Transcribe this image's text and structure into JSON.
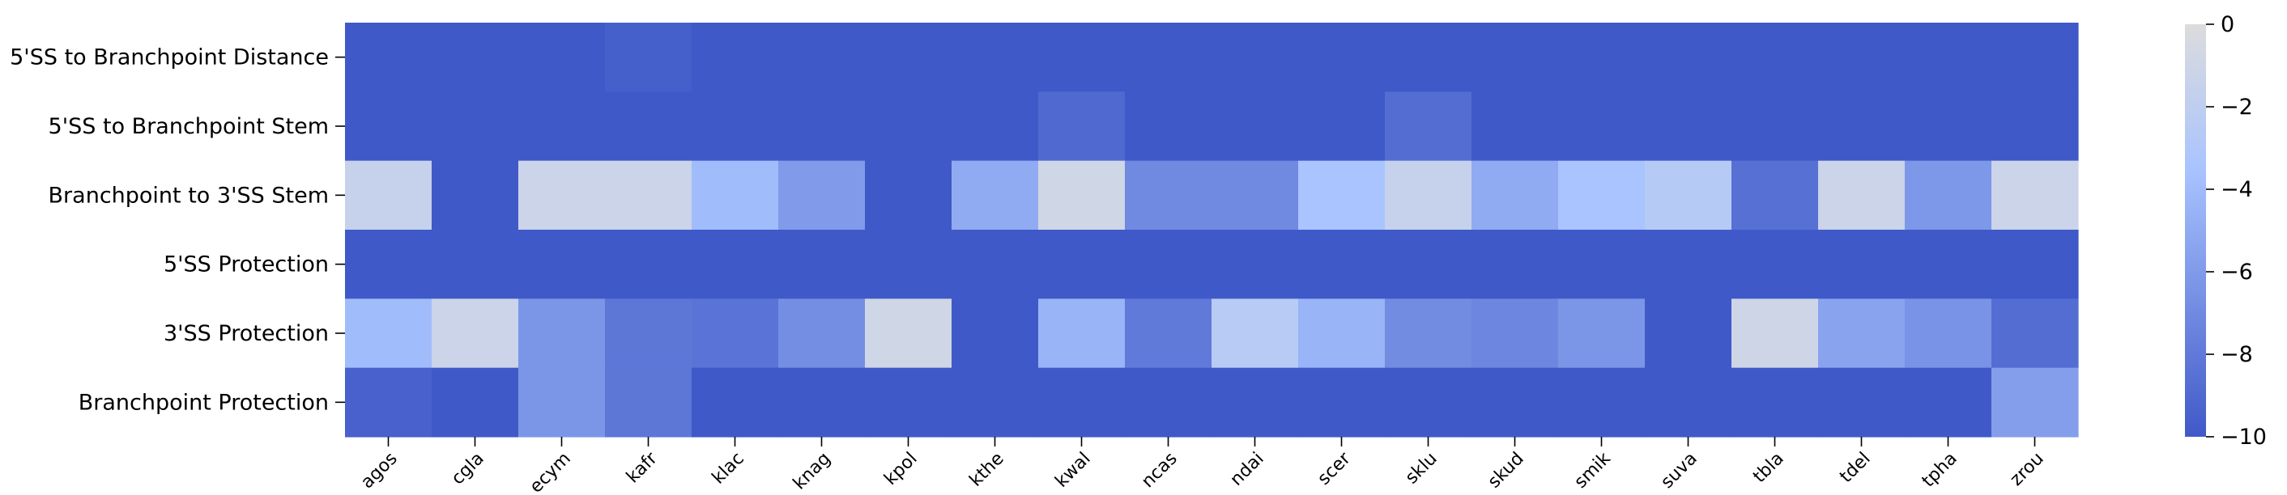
{
  "chart_data": {
    "type": "heatmap",
    "title": "",
    "xlabel": "",
    "ylabel": "",
    "columns": [
      "agos",
      "cgla",
      "ecym",
      "kafr",
      "klac",
      "knag",
      "kpol",
      "kthe",
      "kwal",
      "ncas",
      "ndai",
      "scer",
      "sklu",
      "skud",
      "smik",
      "suva",
      "tbla",
      "tdel",
      "tpha",
      "zrou"
    ],
    "rows": [
      "5'SS to Branchpoint Distance",
      "5'SS to Branchpoint Stem",
      "Branchpoint to 3'SS Stem",
      "5'SS Protection",
      "3'SS Protection",
      "Branchpoint Protection"
    ],
    "values": [
      [
        -10,
        -10,
        -10,
        -9.6,
        -10,
        -10,
        -10,
        -10,
        -10,
        -10,
        -10,
        -10,
        -10,
        -10,
        -10,
        -10,
        -10,
        -10,
        -10,
        -10
      ],
      [
        -10,
        -10,
        -10,
        -10,
        -10,
        -10,
        -10,
        -10,
        -9.0,
        -10,
        -10,
        -10,
        -8.8,
        -10,
        -10,
        -10,
        -10,
        -10,
        -10,
        -10
      ],
      [
        -1.5,
        -10,
        -1.2,
        -1.2,
        -4.0,
        -6.0,
        -10,
        -5.0,
        -0.9,
        -7.0,
        -7.0,
        -3.5,
        -1.5,
        -5.0,
        -3.5,
        -2.6,
        -8.6,
        -1.2,
        -6.2,
        -1.2
      ],
      [
        -10,
        -10,
        -10,
        -10,
        -10,
        -10,
        -10,
        -10,
        -10,
        -10,
        -10,
        -10,
        -10,
        -10,
        -10,
        -10,
        -10,
        -10,
        -10,
        -10
      ],
      [
        -4.0,
        -1.2,
        -6.3,
        -8.2,
        -8.4,
        -6.8,
        -0.9,
        -10,
        -4.5,
        -8.0,
        -2.5,
        -4.5,
        -6.9,
        -7.2,
        -6.3,
        -10,
        -1.0,
        -5.5,
        -6.5,
        -8.8
      ],
      [
        -9.5,
        -10,
        -6.3,
        -8.2,
        -10,
        -10,
        -10,
        -10,
        -10,
        -10,
        -10,
        -10,
        -10,
        -10,
        -10,
        -10,
        -10,
        -10,
        -10,
        -5.8
      ]
    ],
    "colorbar": {
      "range": [
        -10,
        0
      ],
      "ticks": [
        "0",
        "−2",
        "−4",
        "−6",
        "−8",
        "−10"
      ],
      "tick_values": [
        0,
        -2,
        -4,
        -6,
        -8,
        -10
      ],
      "colors": [
        "#dcdcdc",
        "#a9c4ff",
        "#4059c8"
      ]
    },
    "grid": false
  }
}
